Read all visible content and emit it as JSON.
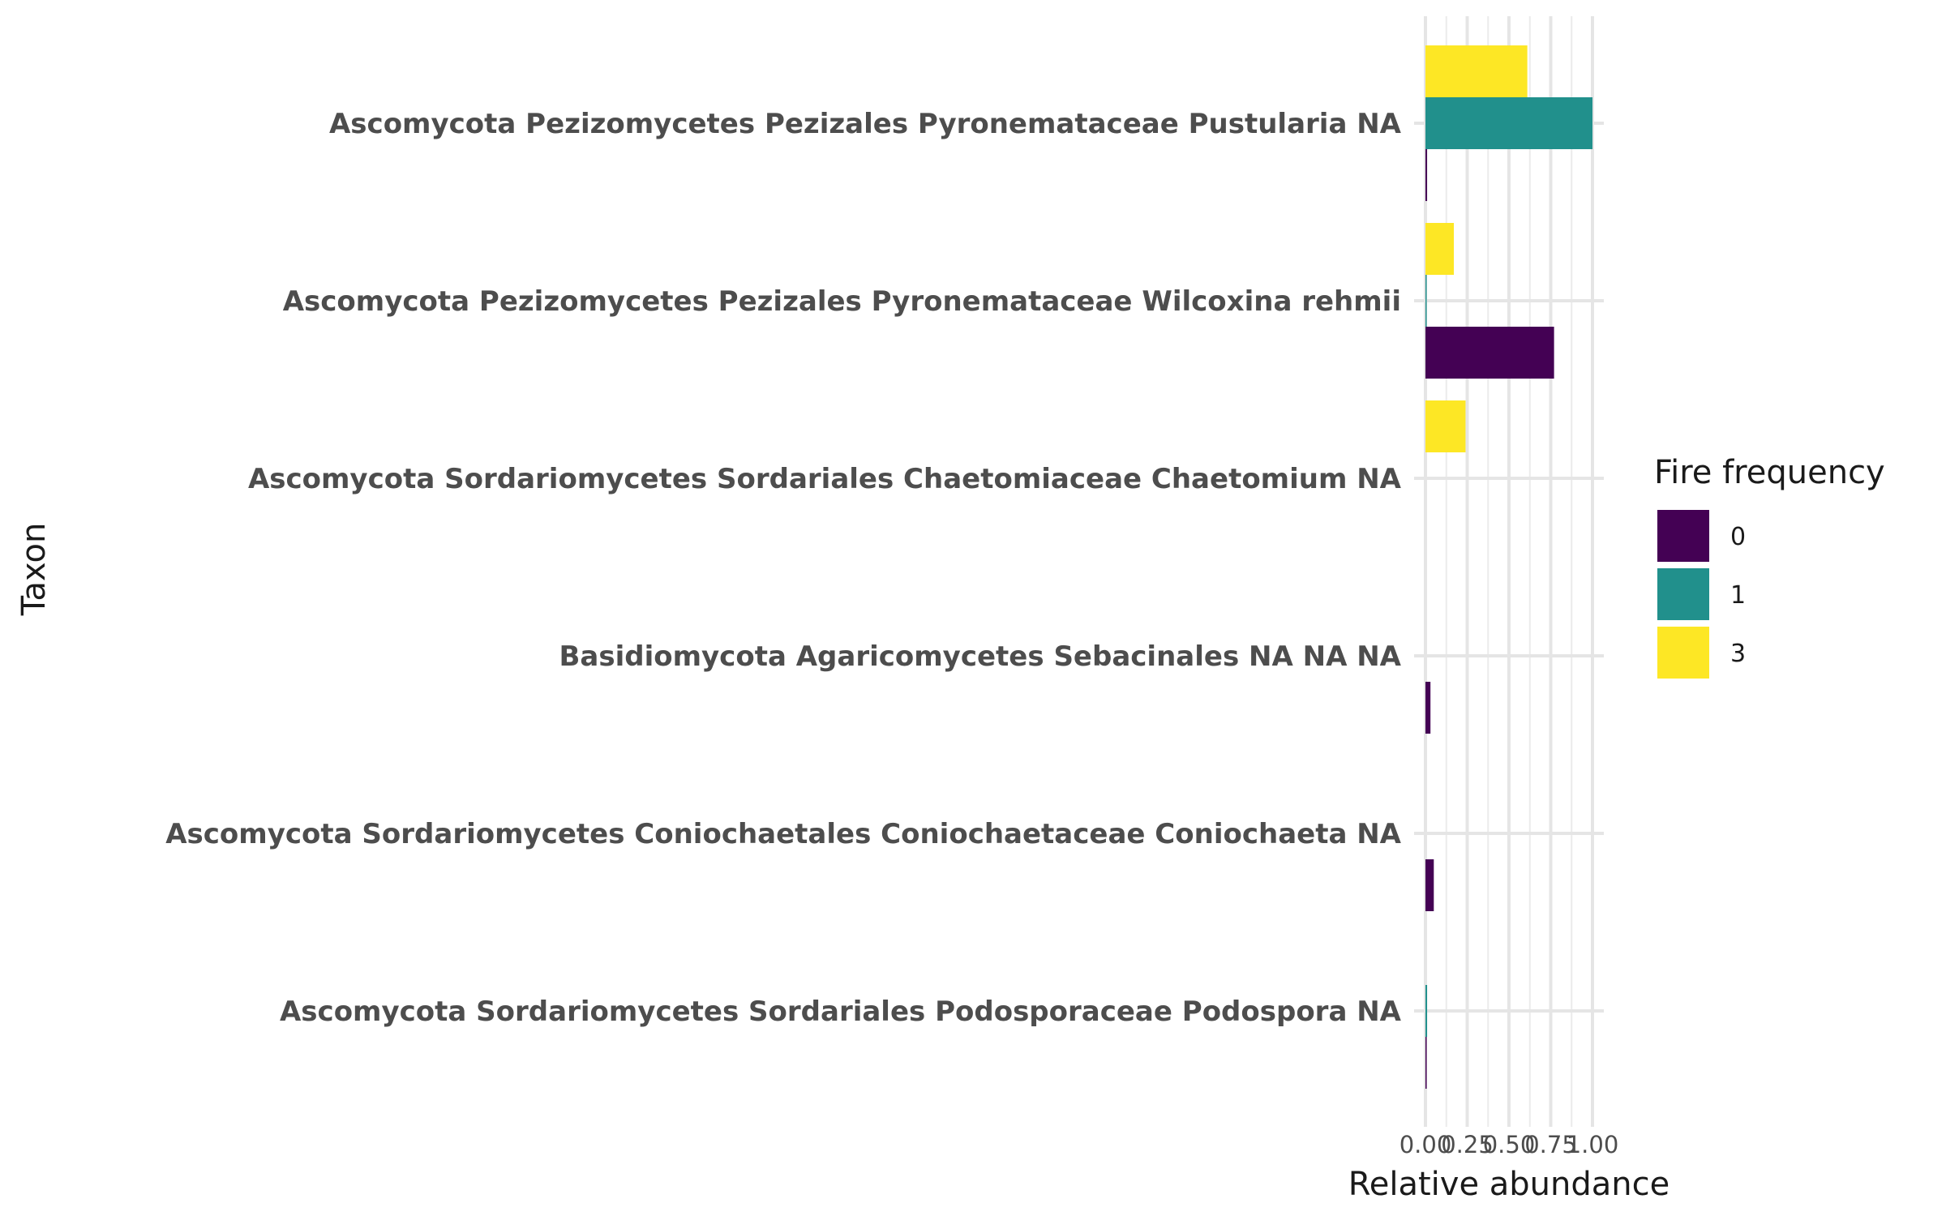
{
  "chart_data": {
    "type": "bar",
    "orientation": "horizontal",
    "xlabel": "Relative abundance",
    "ylabel": "Taxon",
    "xlim": [
      0,
      1
    ],
    "x_ticks": [
      "0.00",
      "0.25",
      "0.50",
      "0.75",
      "1.00"
    ],
    "x_tick_values": [
      0,
      0.25,
      0.5,
      0.75,
      1.0
    ],
    "grid": true,
    "legend": {
      "title": "Fire frequency",
      "position": "right"
    },
    "categories": [
      "Ascomycota Pezizomycetes Pezizales Pyronemataceae Pustularia NA",
      "Ascomycota Pezizomycetes Pezizales Pyronemataceae Wilcoxina rehmii",
      "Ascomycota Sordariomycetes Sordariales Chaetomiaceae Chaetomium NA",
      "Basidiomycota Agaricomycetes Sebacinales NA NA NA",
      "Ascomycota Sordariomycetes Coniochaetales Coniochaetaceae Coniochaeta NA",
      "Ascomycota Sordariomycetes Sordariales Podosporaceae Podospora NA"
    ],
    "series": [
      {
        "name": "0",
        "color": "#440154",
        "values": [
          0.01,
          0.77,
          0.0,
          0.03,
          0.05,
          0.003
        ]
      },
      {
        "name": "1",
        "color": "#21908C",
        "values": [
          1.0,
          0.005,
          0.0,
          0.0,
          0.0,
          0.01
        ]
      },
      {
        "name": "3",
        "color": "#FDE725",
        "values": [
          0.61,
          0.17,
          0.24,
          0.0,
          0.0,
          0.0
        ]
      }
    ]
  }
}
